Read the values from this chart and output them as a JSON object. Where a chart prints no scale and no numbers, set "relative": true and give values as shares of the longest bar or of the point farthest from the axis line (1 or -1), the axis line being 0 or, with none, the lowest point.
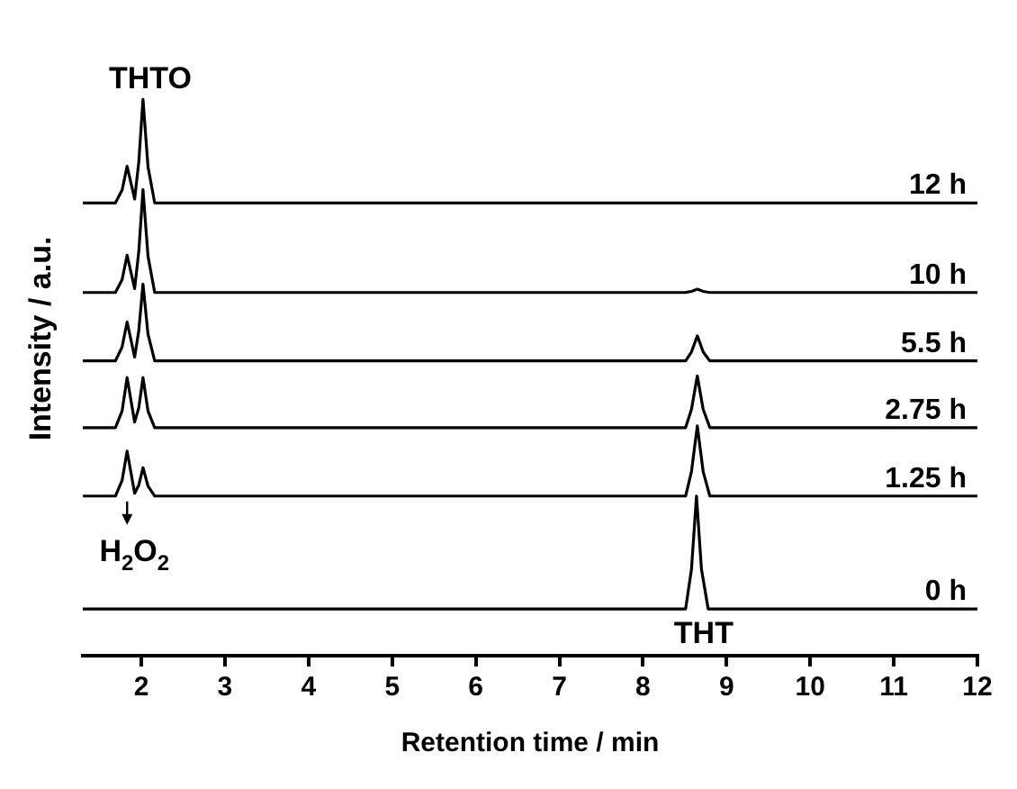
{
  "chart_data": {
    "type": "line",
    "relative": true,
    "xlabel": "Retention time / min",
    "ylabel": "Intensity / a.u.",
    "xlim": [
      1.3,
      12
    ],
    "xticks": [
      2,
      3,
      4,
      5,
      6,
      7,
      8,
      9,
      10,
      11,
      12
    ],
    "marker": "none",
    "legend": false,
    "annotations": [
      {
        "text": "THTO",
        "x": 2.02,
        "y": 1.0
      },
      {
        "text": "H$_{2}$O$_{2}$",
        "x": 1.83,
        "y": 0.287
      },
      "THT"
    ],
    "series": [
      {
        "name": "0 h",
        "color": "#000000",
        "x": [
          1.3,
          8.51,
          8.58,
          8.64,
          8.7,
          8.78,
          12
        ],
        "values": [
          0.084,
          0.084,
          0.155,
          0.287,
          0.155,
          0.084,
          0.084
        ]
      },
      {
        "name": "1.25 h",
        "color": "#000000",
        "x": [
          1.3,
          1.69,
          1.77,
          1.83,
          1.92,
          1.97,
          2.02,
          2.08,
          2.16,
          8.51,
          8.58,
          8.65,
          8.72,
          8.8,
          12
        ],
        "values": [
          0.287,
          0.287,
          0.315,
          0.368,
          0.292,
          0.307,
          0.338,
          0.305,
          0.287,
          0.287,
          0.331,
          0.413,
          0.331,
          0.287,
          0.287
        ]
      },
      {
        "name": "2.75 h",
        "color": "#000000",
        "x": [
          1.3,
          1.69,
          1.77,
          1.83,
          1.92,
          1.97,
          2.02,
          2.08,
          2.16,
          8.51,
          8.58,
          8.65,
          8.72,
          8.8,
          12
        ],
        "values": [
          0.41,
          0.41,
          0.44,
          0.5,
          0.42,
          0.446,
          0.5,
          0.44,
          0.41,
          0.41,
          0.443,
          0.503,
          0.443,
          0.41,
          0.41
        ]
      },
      {
        "name": "5.5 h",
        "color": "#000000",
        "x": [
          1.3,
          1.69,
          1.77,
          1.83,
          1.92,
          1.97,
          2.02,
          2.08,
          2.16,
          8.51,
          8.58,
          8.65,
          8.72,
          8.8,
          12
        ],
        "values": [
          0.53,
          0.53,
          0.555,
          0.6,
          0.537,
          0.585,
          0.668,
          0.578,
          0.53,
          0.53,
          0.546,
          0.575,
          0.546,
          0.53,
          0.53
        ]
      },
      {
        "name": "10 h",
        "color": "#000000",
        "x": [
          1.3,
          1.69,
          1.77,
          1.83,
          1.92,
          1.97,
          2.02,
          2.08,
          2.16,
          8.51,
          8.58,
          8.65,
          8.72,
          8.8,
          12
        ],
        "values": [
          0.653,
          0.653,
          0.676,
          0.72,
          0.66,
          0.727,
          0.838,
          0.718,
          0.653,
          0.653,
          0.655,
          0.659,
          0.655,
          0.653,
          0.653
        ]
      },
      {
        "name": "12 h",
        "color": "#000000",
        "x": [
          1.3,
          1.69,
          1.77,
          1.83,
          1.92,
          1.97,
          2.02,
          2.08,
          2.16,
          12
        ],
        "values": [
          0.814,
          0.814,
          0.837,
          0.88,
          0.821,
          0.888,
          1.0,
          0.879,
          0.814,
          0.814
        ]
      }
    ]
  }
}
